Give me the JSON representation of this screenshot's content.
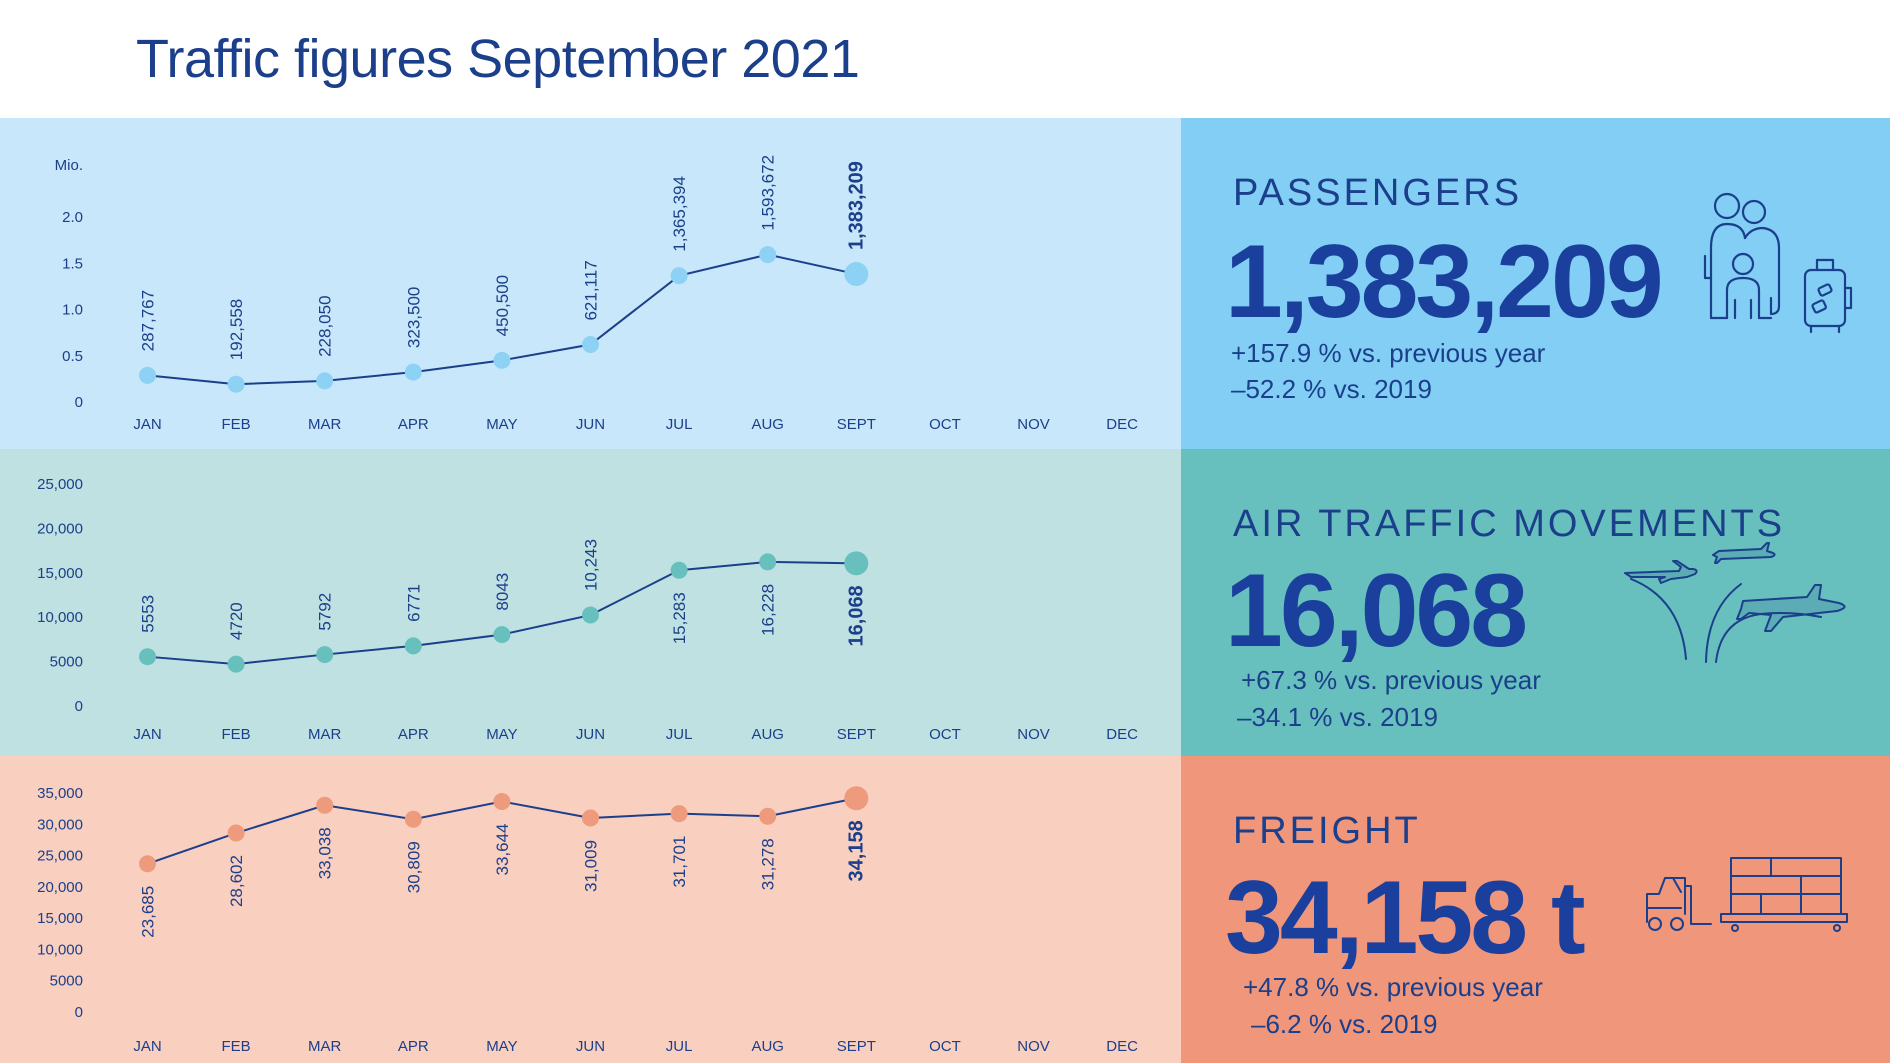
{
  "title": "Traffic figures September 2021",
  "months": [
    "JAN",
    "FEB",
    "MAR",
    "APR",
    "MAY",
    "JUN",
    "JUL",
    "AUG",
    "SEPT",
    "OCT",
    "NOV",
    "DEC"
  ],
  "colors": {
    "passengers_bg": "#c9e7fa",
    "passengers_panel": "#82cef4",
    "passengers_dot": "#8dd1f4",
    "movements_bg": "#c0e1e1",
    "movements_panel": "#67c0bd",
    "movements_dot": "#67c0bd",
    "freight_bg": "#f9cfc0",
    "freight_panel": "#f0967a",
    "freight_dot": "#ee9a7c",
    "line": "#1b3f8b",
    "text": "#1b3f8b"
  },
  "passengers": {
    "heading": "PASSENGERS",
    "value": "1,383,209",
    "change_prev": "+157.9 % vs. previous year",
    "change_2019": "–52.2 % vs. 2019",
    "icon": "family-with-luggage-icon"
  },
  "movements": {
    "heading": "AIR TRAFFIC MOVEMENTS",
    "value": "16,068",
    "change_prev": "+67.3 % vs. previous year",
    "change_2019": "–34.1 % vs. 2019",
    "icon": "airplanes-icon"
  },
  "freight": {
    "heading": "FREIGHT",
    "value": "34,158 t",
    "change_prev": "+47.8 % vs. previous year",
    "change_2019": "–6.2 % vs. 2019",
    "icon": "forklift-and-pallet-icon"
  },
  "chart_data": [
    {
      "type": "line",
      "name": "passengers",
      "x": [
        "JAN",
        "FEB",
        "MAR",
        "APR",
        "MAY",
        "JUN",
        "JUL",
        "AUG",
        "SEPT",
        "OCT",
        "NOV",
        "DEC"
      ],
      "values": [
        287767,
        192558,
        228050,
        323500,
        450500,
        621117,
        1365394,
        1593672,
        1383209
      ],
      "labels": [
        "287,767",
        "192,558",
        "228,050",
        "323,500",
        "450,500",
        "621,117",
        "1,365,394",
        "1,593,672",
        "1,383,209"
      ],
      "ylabel": "Mio.",
      "y_scale": 1000000,
      "y_ticks": [
        0,
        0.5,
        1.0,
        1.5,
        2.0
      ],
      "y_tick_labels": [
        "0",
        "0.5",
        "1.0",
        "1.5",
        "2.0"
      ],
      "ylim": [
        0,
        2.0
      ],
      "label_position": "above"
    },
    {
      "type": "line",
      "name": "movements",
      "x": [
        "JAN",
        "FEB",
        "MAR",
        "APR",
        "MAY",
        "JUN",
        "JUL",
        "AUG",
        "SEPT",
        "OCT",
        "NOV",
        "DEC"
      ],
      "values": [
        5553,
        4720,
        5792,
        6771,
        8043,
        10243,
        15283,
        16228,
        16068
      ],
      "labels": [
        "5553",
        "4720",
        "5792",
        "6771",
        "8043",
        "10,243",
        "15,283",
        "16,228",
        "16,068"
      ],
      "ylabel": "",
      "y_scale": 1,
      "y_ticks": [
        0,
        5000,
        10000,
        15000,
        20000,
        25000
      ],
      "y_tick_labels": [
        "0",
        "5000",
        "10,000",
        "15,000",
        "20,000",
        "25,000"
      ],
      "ylim": [
        0,
        25000
      ],
      "label_position": "above-then-below"
    },
    {
      "type": "line",
      "name": "freight",
      "x": [
        "JAN",
        "FEB",
        "MAR",
        "APR",
        "MAY",
        "JUN",
        "JUL",
        "AUG",
        "SEPT",
        "OCT",
        "NOV",
        "DEC"
      ],
      "values": [
        23685,
        28602,
        33038,
        30809,
        33644,
        31009,
        31701,
        31278,
        34158
      ],
      "labels": [
        "23,685",
        "28,602",
        "33,038",
        "30,809",
        "33,644",
        "31,009",
        "31,701",
        "31,278",
        "34,158"
      ],
      "ylabel": "",
      "y_scale": 1,
      "y_ticks": [
        0,
        5000,
        10000,
        15000,
        20000,
        25000,
        30000,
        35000
      ],
      "y_tick_labels": [
        "0",
        "5000",
        "10,000",
        "15,000",
        "20,000",
        "25,000",
        "30,000",
        "35,000"
      ],
      "ylim": [
        0,
        35000
      ],
      "label_position": "below"
    }
  ]
}
